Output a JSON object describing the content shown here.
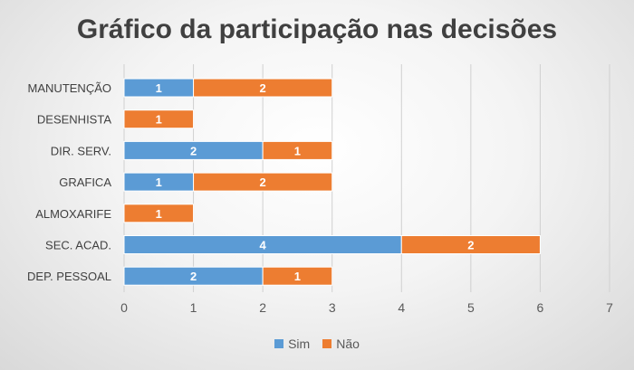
{
  "chart_data": {
    "type": "bar",
    "orientation": "horizontal",
    "stacked": true,
    "title": "Gráfico da participação nas decisões",
    "categories": [
      "MANUTENÇÃO",
      "DESENHISTA",
      "DIR. SERV.",
      "GRAFICA",
      "ALMOXARIFE",
      "SEC. ACAD.",
      "DEP. PESSOAL"
    ],
    "series": [
      {
        "name": "Sim",
        "color": "#5b9bd5",
        "values": [
          1,
          0,
          2,
          1,
          0,
          4,
          2
        ]
      },
      {
        "name": "Não",
        "color": "#ed7d31",
        "values": [
          2,
          1,
          1,
          2,
          1,
          2,
          1
        ]
      }
    ],
    "xlim": [
      0,
      7
    ],
    "xticks": [
      "0",
      "1",
      "2",
      "3",
      "4",
      "5",
      "6",
      "7"
    ],
    "grid": true,
    "data_labels": true,
    "legend_position": "bottom"
  }
}
